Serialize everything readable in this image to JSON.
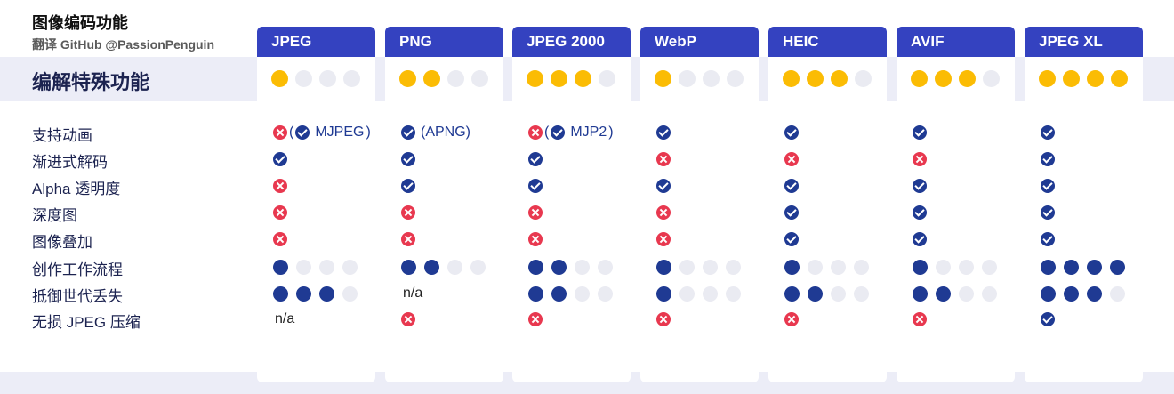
{
  "header": {
    "title": "图像编码功能",
    "subtitle": "翻译 GitHub @PassionPenguin"
  },
  "section_title": "编解特殊功能",
  "colors": {
    "header_bg": "#3442c0",
    "band_bg": "#ecedf7",
    "yes": "#1f3a93",
    "no": "#e8384f",
    "rating_header_filled": "#fbbc04",
    "rating_row_filled": "#1f3a93",
    "rating_empty": "#eaebf2"
  },
  "chart_data": {
    "type": "table",
    "title": "图像编码功能",
    "section": "编解特殊功能",
    "columns": [
      "JPEG",
      "PNG",
      "JPEG 2000",
      "WebP",
      "HEIC",
      "AVIF",
      "JPEG XL"
    ],
    "overall_rating": [
      1,
      2,
      3,
      1,
      3,
      3,
      4
    ],
    "rating_max": 4,
    "rows": [
      {
        "label": "支持动画",
        "type": "bool",
        "values": [
          {
            "icons": [
              "no",
              "yes"
            ],
            "text": "MJPEG",
            "prefix": "(",
            "suffix": ")"
          },
          {
            "icons": [
              "yes"
            ],
            "text": "(APNG)"
          },
          {
            "icons": [
              "no",
              "yes"
            ],
            "text": "MJP2",
            "prefix": "(",
            "suffix": ")"
          },
          {
            "icons": [
              "yes"
            ]
          },
          {
            "icons": [
              "yes"
            ]
          },
          {
            "icons": [
              "yes"
            ]
          },
          {
            "icons": [
              "yes"
            ]
          }
        ]
      },
      {
        "label": "渐进式解码",
        "type": "bool",
        "values": [
          {
            "icons": [
              "yes"
            ]
          },
          {
            "icons": [
              "yes"
            ]
          },
          {
            "icons": [
              "yes"
            ]
          },
          {
            "icons": [
              "no"
            ]
          },
          {
            "icons": [
              "no"
            ]
          },
          {
            "icons": [
              "no"
            ]
          },
          {
            "icons": [
              "yes"
            ]
          }
        ]
      },
      {
        "label": "Alpha 透明度",
        "type": "bool",
        "values": [
          {
            "icons": [
              "no"
            ]
          },
          {
            "icons": [
              "yes"
            ]
          },
          {
            "icons": [
              "yes"
            ]
          },
          {
            "icons": [
              "yes"
            ]
          },
          {
            "icons": [
              "yes"
            ]
          },
          {
            "icons": [
              "yes"
            ]
          },
          {
            "icons": [
              "yes"
            ]
          }
        ]
      },
      {
        "label": "深度图",
        "type": "bool",
        "values": [
          {
            "icons": [
              "no"
            ]
          },
          {
            "icons": [
              "no"
            ]
          },
          {
            "icons": [
              "no"
            ]
          },
          {
            "icons": [
              "no"
            ]
          },
          {
            "icons": [
              "yes"
            ]
          },
          {
            "icons": [
              "yes"
            ]
          },
          {
            "icons": [
              "yes"
            ]
          }
        ]
      },
      {
        "label": "图像叠加",
        "type": "bool",
        "values": [
          {
            "icons": [
              "no"
            ]
          },
          {
            "icons": [
              "no"
            ]
          },
          {
            "icons": [
              "no"
            ]
          },
          {
            "icons": [
              "no"
            ]
          },
          {
            "icons": [
              "yes"
            ]
          },
          {
            "icons": [
              "yes"
            ]
          },
          {
            "icons": [
              "yes"
            ]
          }
        ]
      },
      {
        "label": "创作工作流程",
        "type": "rating",
        "values": [
          1,
          2,
          2,
          1,
          1,
          1,
          4
        ]
      },
      {
        "label": "抵御世代丢失",
        "type": "rating",
        "values": [
          3,
          "n/a",
          2,
          1,
          2,
          2,
          3
        ]
      },
      {
        "label": "无损 JPEG 压缩",
        "type": "bool",
        "values": [
          {
            "text": "n/a",
            "plain": true
          },
          {
            "icons": [
              "no"
            ]
          },
          {
            "icons": [
              "no"
            ]
          },
          {
            "icons": [
              "no"
            ]
          },
          {
            "icons": [
              "no"
            ]
          },
          {
            "icons": [
              "no"
            ]
          },
          {
            "icons": [
              "yes"
            ]
          }
        ]
      }
    ]
  }
}
